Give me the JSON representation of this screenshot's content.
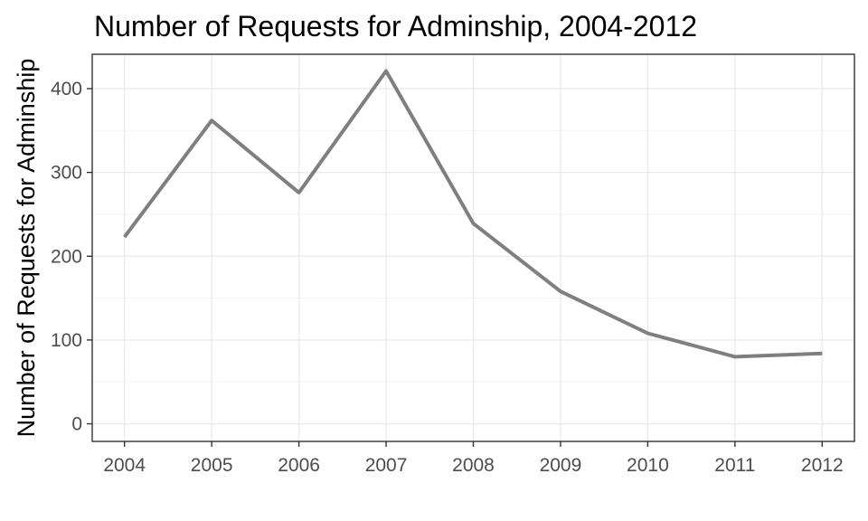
{
  "chart_data": {
    "type": "line",
    "title": "Number of Requests for Adminship, 2004-2012",
    "xlabel": "",
    "ylabel": "Number of Requests for Adminship",
    "x": [
      2004,
      2005,
      2006,
      2007,
      2008,
      2009,
      2010,
      2011,
      2012
    ],
    "x_tick_labels": [
      "2004",
      "2005",
      "2006",
      "2007",
      "2008",
      "2009",
      "2010",
      "2011",
      "2012"
    ],
    "y_ticks": [
      0,
      100,
      200,
      300,
      400
    ],
    "y_tick_labels": [
      "0",
      "100",
      "200",
      "300",
      "400"
    ],
    "series": [
      {
        "values": [
          223,
          362,
          276,
          421,
          239,
          158,
          108,
          80,
          84
        ],
        "color": "#7f7f7f"
      }
    ],
    "xlim": [
      2003.63,
      2012.37
    ],
    "ylim": [
      -21,
      441
    ],
    "grid": true,
    "legend": "none"
  }
}
